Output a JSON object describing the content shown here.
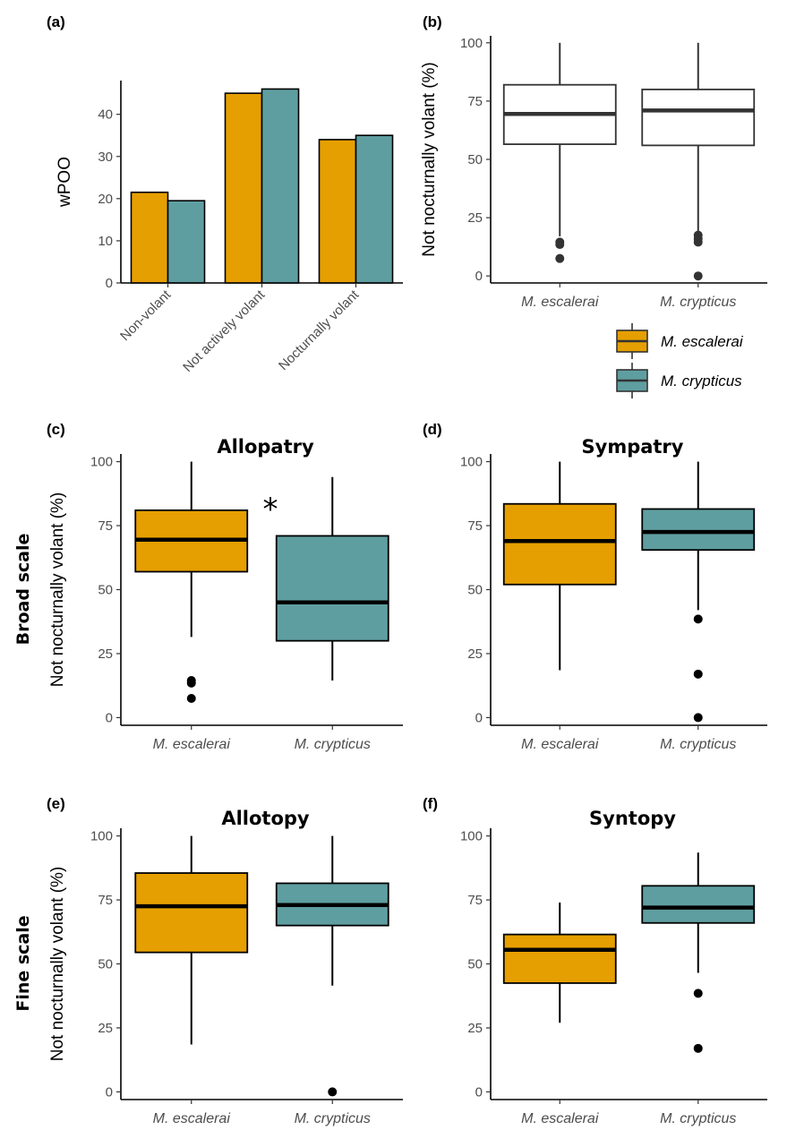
{
  "colors": {
    "escalerai": "#E69F00",
    "crypticus": "#5F9EA0",
    "box_white": "#ffffff"
  },
  "row_labels": [
    "Broad scale",
    "Fine scale"
  ],
  "legend": {
    "entries": [
      {
        "label": "M. escalerai",
        "color": "#E69F00"
      },
      {
        "label": "M. crypticus",
        "color": "#5F9EA0"
      }
    ]
  },
  "chart_data": [
    {
      "id": "a",
      "panel_label": "(a)",
      "type": "bar",
      "title": "",
      "ylabel": "wPOO",
      "ylim": [
        0,
        48
      ],
      "yticks": [
        0,
        10,
        20,
        30,
        40
      ],
      "categories": [
        "Non-volant",
        "Not actively volant",
        "Nocturnally volant"
      ],
      "series": [
        {
          "key": "escalerai",
          "values": [
            21.5,
            45,
            34
          ]
        },
        {
          "key": "crypticus",
          "values": [
            19.5,
            46,
            35
          ]
        }
      ]
    },
    {
      "id": "b",
      "panel_label": "(b)",
      "type": "box",
      "title": "",
      "ylabel": "Not nocturnally volant (%)",
      "ylim": [
        -3,
        103
      ],
      "yticks": [
        0,
        25,
        50,
        75,
        100
      ],
      "fill_mode": "white",
      "categories": [
        "M. escalerai",
        "M. crypticus"
      ],
      "boxes": [
        {
          "key": "escalerai",
          "min": 17,
          "q1": 56.5,
          "median": 69.5,
          "q3": 82,
          "max": 100,
          "outliers": [
            14.5,
            13.5,
            7.5
          ]
        },
        {
          "key": "crypticus",
          "min": 19,
          "q1": 56,
          "median": 71,
          "q3": 80,
          "max": 100,
          "outliers": [
            17.5,
            16,
            14.5,
            0
          ]
        }
      ]
    },
    {
      "id": "c",
      "panel_label": "(c)",
      "type": "box",
      "title": "Allopatry",
      "annotation": "*",
      "ylabel": "Not nocturnally volant (%)",
      "ylim": [
        -3,
        103
      ],
      "yticks": [
        0,
        25,
        50,
        75,
        100
      ],
      "fill_mode": "species",
      "categories": [
        "M. escalerai",
        "M. crypticus"
      ],
      "boxes": [
        {
          "key": "escalerai",
          "min": 31.5,
          "q1": 57,
          "median": 69.5,
          "q3": 81,
          "max": 100,
          "outliers": [
            14.5,
            13.5,
            7.5
          ]
        },
        {
          "key": "crypticus",
          "min": 14.5,
          "q1": 30,
          "median": 45,
          "q3": 71,
          "max": 94,
          "outliers": []
        }
      ]
    },
    {
      "id": "d",
      "panel_label": "(d)",
      "type": "box",
      "title": "Sympatry",
      "ylabel": "",
      "ylim": [
        -3,
        103
      ],
      "yticks": [
        0,
        25,
        50,
        75,
        100
      ],
      "fill_mode": "species",
      "categories": [
        "M. escalerai",
        "M. crypticus"
      ],
      "boxes": [
        {
          "key": "escalerai",
          "min": 18.5,
          "q1": 52,
          "median": 69,
          "q3": 83.5,
          "max": 100,
          "outliers": []
        },
        {
          "key": "crypticus",
          "min": 42,
          "q1": 65.5,
          "median": 72.5,
          "q3": 81.5,
          "max": 100,
          "outliers": [
            38.5,
            17,
            0
          ]
        }
      ]
    },
    {
      "id": "e",
      "panel_label": "(e)",
      "type": "box",
      "title": "Allotopy",
      "ylabel": "Not nocturnally volant (%)",
      "ylim": [
        -3,
        103
      ],
      "yticks": [
        0,
        25,
        50,
        75,
        100
      ],
      "fill_mode": "species",
      "categories": [
        "M. escalerai",
        "M. crypticus"
      ],
      "boxes": [
        {
          "key": "escalerai",
          "min": 18.5,
          "q1": 54.5,
          "median": 72.5,
          "q3": 85.5,
          "max": 100,
          "outliers": []
        },
        {
          "key": "crypticus",
          "min": 41.5,
          "q1": 65,
          "median": 73,
          "q3": 81.5,
          "max": 100,
          "outliers": [
            0
          ]
        }
      ]
    },
    {
      "id": "f",
      "panel_label": "(f)",
      "type": "box",
      "title": "Syntopy",
      "ylabel": "",
      "ylim": [
        -3,
        103
      ],
      "yticks": [
        0,
        25,
        50,
        75,
        100
      ],
      "fill_mode": "species",
      "categories": [
        "M. escalerai",
        "M. crypticus"
      ],
      "boxes": [
        {
          "key": "escalerai",
          "min": 27,
          "q1": 42.5,
          "median": 55.5,
          "q3": 61.5,
          "max": 74,
          "outliers": []
        },
        {
          "key": "crypticus",
          "min": 46.5,
          "q1": 66,
          "median": 72,
          "q3": 80.5,
          "max": 93.5,
          "outliers": [
            38.5,
            17
          ]
        }
      ]
    }
  ]
}
